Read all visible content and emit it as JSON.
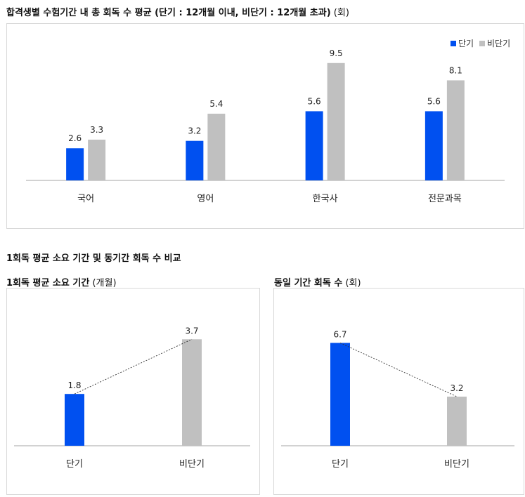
{
  "top_title": {
    "main": "합격생별 수험기간 내 총 회독 수 평균 (단기 : 12개월 이내, 비단기 : 12개월 초과)",
    "unit": "(회)"
  },
  "section_title": "1회독 평균 소요 기간 및 동기간 회독 수 비교",
  "left_title": {
    "main": "1회독 평균 소요 기간",
    "unit": "(개월)"
  },
  "right_title": {
    "main": "동일 기간 회독 수",
    "unit": "(회)"
  },
  "colors": {
    "short": "#0050f0",
    "long": "#c0c0c0"
  },
  "chart_data": [
    {
      "type": "bar",
      "categories": [
        "국어",
        "영어",
        "한국사",
        "전문과목"
      ],
      "series": [
        {
          "name": "단기",
          "values": [
            2.6,
            3.2,
            5.6,
            5.6
          ]
        },
        {
          "name": "비단기",
          "values": [
            3.3,
            5.4,
            9.5,
            8.1
          ]
        }
      ],
      "ylim": [
        0,
        10
      ],
      "legend": "top-right",
      "grid": false
    },
    {
      "type": "bar",
      "categories": [
        "단기",
        "비단기"
      ],
      "values": [
        1.8,
        3.7
      ],
      "ylim": [
        0,
        4
      ],
      "grid": false
    },
    {
      "type": "bar",
      "categories": [
        "단기",
        "비단기"
      ],
      "values": [
        6.7,
        3.2
      ],
      "ylim": [
        0,
        7.5
      ],
      "grid": false
    }
  ]
}
